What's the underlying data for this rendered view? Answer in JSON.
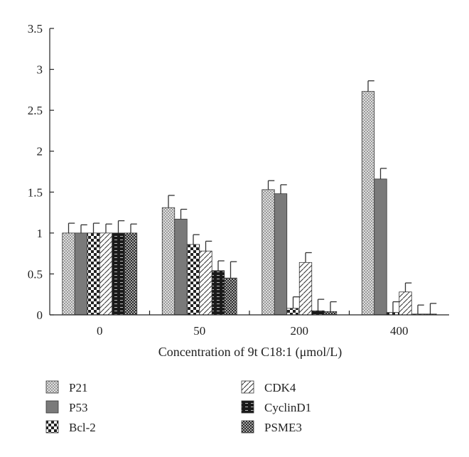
{
  "chart_data": {
    "type": "bar",
    "title": "",
    "xlabel": "Concentration of 9t C18:1 (μmol/L)",
    "ylabel": "",
    "ylim": [
      0,
      3.5
    ],
    "yticks": [
      "0",
      "0.5",
      "1",
      "1.5",
      "2",
      "2.5",
      "3",
      "3.5"
    ],
    "categories": [
      "0",
      "50",
      "200",
      "400"
    ],
    "grid": false,
    "legend_position": "bottom",
    "series": [
      {
        "name": "P21",
        "pattern": "fine-check",
        "values": [
          1.0,
          1.31,
          1.53,
          2.73
        ],
        "errors": [
          0.12,
          0.15,
          0.11,
          0.13
        ]
      },
      {
        "name": "P53",
        "pattern": "solid-gray",
        "values": [
          1.0,
          1.17,
          1.48,
          1.66
        ],
        "errors": [
          0.1,
          0.12,
          0.11,
          0.13
        ]
      },
      {
        "name": "Bcl-2",
        "pattern": "large-check",
        "values": [
          1.0,
          0.86,
          0.08,
          0.03
        ],
        "errors": [
          0.12,
          0.12,
          0.14,
          0.13
        ]
      },
      {
        "name": "CDK4",
        "pattern": "diagonal",
        "values": [
          1.0,
          0.78,
          0.64,
          0.28
        ],
        "errors": [
          0.11,
          0.12,
          0.12,
          0.11
        ]
      },
      {
        "name": "CyclinD1",
        "pattern": "dashes",
        "values": [
          1.0,
          0.54,
          0.05,
          0.01
        ],
        "errors": [
          0.15,
          0.12,
          0.14,
          0.11
        ]
      },
      {
        "name": "PSME3",
        "pattern": "dots",
        "values": [
          1.0,
          0.45,
          0.04,
          0.01
        ],
        "errors": [
          0.11,
          0.2,
          0.12,
          0.13
        ]
      }
    ]
  }
}
